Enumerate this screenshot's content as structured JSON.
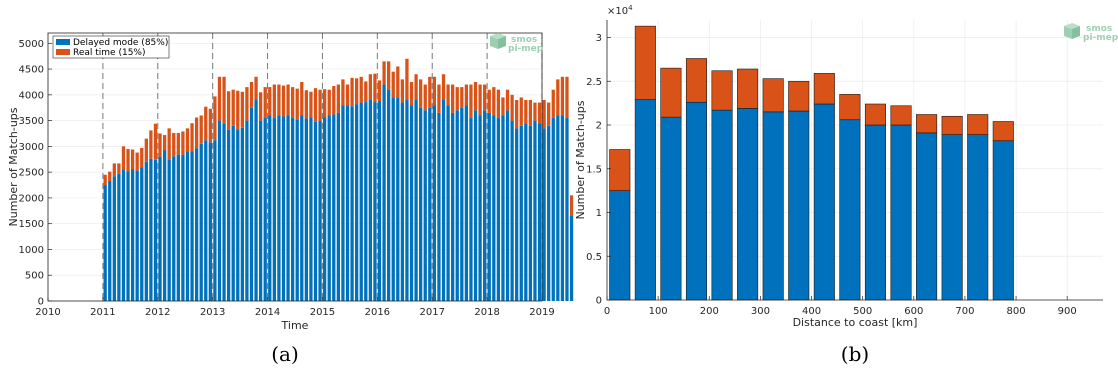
{
  "colors": {
    "delayed": "#0072bd",
    "realtime": "#d95319",
    "grid": "#ebebeb",
    "axis": "#262626",
    "logo": "#9fcfb3"
  },
  "logo": {
    "line1": "smos",
    "line2": "pi-mep",
    "icon": "cube-logo-icon"
  },
  "panel_a_caption": "(a)",
  "panel_b_caption": "(b)",
  "chart_data": [
    {
      "type": "bar",
      "stacked": true,
      "xlabel": "Time",
      "ylabel": "Number of Match-ups",
      "xlim": [
        2010,
        2019
      ],
      "ylim": [
        0,
        5200
      ],
      "xticks": [
        "2010",
        "2011",
        "2012",
        "2013",
        "2014",
        "2015",
        "2016",
        "2017",
        "2018",
        "2019"
      ],
      "yticks": [
        "0",
        "500",
        "1000",
        "1500",
        "2000",
        "2500",
        "3000",
        "3500",
        "4000",
        "4500",
        "5000"
      ],
      "grid": true,
      "legend": {
        "position": "top-left",
        "entries": [
          "Delayed mode (85%)",
          "Real time (15%)"
        ]
      },
      "year_markers": [
        2011,
        2012,
        2013,
        2014,
        2015,
        2016,
        2017,
        2018,
        2019
      ],
      "x_start": 2011,
      "bin_step": 0.0833,
      "series": [
        {
          "name": "Delayed mode (85%)",
          "key": "delayed",
          "values": [
            2250,
            2330,
            2420,
            2470,
            2550,
            2520,
            2560,
            2530,
            2590,
            2700,
            2760,
            2740,
            2800,
            2920,
            2750,
            2810,
            2840,
            2840,
            2900,
            2900,
            2960,
            3050,
            3120,
            3080,
            3120,
            3500,
            3450,
            3320,
            3400,
            3330,
            3360,
            3500,
            3750,
            3900,
            3500,
            3550,
            3600,
            3550,
            3600,
            3580,
            3600,
            3550,
            3520,
            3600,
            3540,
            3560,
            3480,
            3500,
            3560,
            3600,
            3620,
            3650,
            3800,
            3800,
            3780,
            3820,
            3850,
            3860,
            3900,
            3860,
            3880,
            4200,
            4100,
            3950,
            3950,
            3850,
            3900,
            3800,
            3900,
            3750,
            3700,
            3750,
            3800,
            3650,
            3900,
            3800,
            3650,
            3700,
            3750,
            3800,
            3550,
            3700,
            3600,
            3700,
            3650,
            3600,
            3550,
            3600,
            3700,
            3500,
            3350,
            3400,
            3450,
            3400,
            3500,
            3450,
            3350,
            3400,
            3550,
            3600,
            3600,
            3550,
            1650
          ]
        },
        {
          "name": "Real time (15%)",
          "key": "realtime",
          "values": [
            200,
            180,
            250,
            200,
            450,
            430,
            380,
            350,
            380,
            450,
            550,
            700,
            450,
            300,
            600,
            450,
            420,
            450,
            450,
            550,
            600,
            550,
            650,
            650,
            850,
            850,
            900,
            750,
            700,
            750,
            700,
            650,
            500,
            450,
            550,
            600,
            550,
            650,
            600,
            600,
            600,
            600,
            600,
            650,
            550,
            500,
            650,
            600,
            550,
            500,
            550,
            550,
            500,
            400,
            550,
            500,
            500,
            400,
            500,
            550,
            400,
            450,
            550,
            500,
            600,
            450,
            800,
            450,
            500,
            550,
            500,
            600,
            550,
            550,
            500,
            400,
            550,
            450,
            400,
            400,
            650,
            550,
            600,
            500,
            450,
            550,
            550,
            350,
            400,
            500,
            550,
            550,
            450,
            500,
            350,
            400,
            550,
            450,
            550,
            700,
            750,
            800,
            400
          ]
        }
      ]
    },
    {
      "type": "bar",
      "stacked": true,
      "xlabel": "Distance to coast [km]",
      "ylabel": "Number of Match-ups",
      "y_exponent": "×10",
      "y_exponent_power": "4",
      "xlim": [
        0,
        970
      ],
      "ylim": [
        0,
        3.2
      ],
      "xticks": [
        "0",
        "100",
        "200",
        "300",
        "400",
        "500",
        "600",
        "700",
        "800",
        "900"
      ],
      "yticks": [
        "0",
        "0.5",
        "1",
        "1.5",
        "2",
        "2.5",
        "3"
      ],
      "grid": true,
      "bin_width": 50,
      "categories": [
        25,
        75,
        125,
        175,
        225,
        275,
        325,
        375,
        425,
        475,
        525,
        575,
        625,
        675,
        725,
        775
      ],
      "series": [
        {
          "name": "",
          "key": "delayed",
          "values": [
            1.25,
            2.29,
            2.09,
            2.26,
            2.17,
            2.19,
            2.15,
            2.16,
            2.24,
            2.06,
            2.0,
            2.0,
            1.91,
            1.89,
            1.89,
            1.82
          ]
        },
        {
          "name": "",
          "key": "realtime",
          "values": [
            0.47,
            0.84,
            0.56,
            0.5,
            0.45,
            0.45,
            0.38,
            0.34,
            0.35,
            0.29,
            0.24,
            0.22,
            0.21,
            0.21,
            0.23,
            0.22
          ]
        }
      ]
    }
  ]
}
